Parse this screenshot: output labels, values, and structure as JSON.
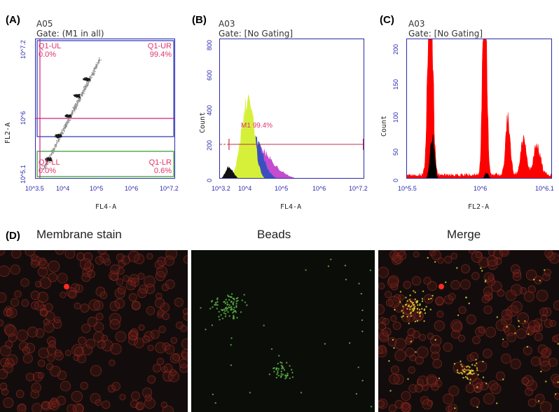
{
  "chart_data": [
    {
      "type": "scatter",
      "panel": "(A)",
      "well": "A05",
      "gate": "Gate: (M1 in all)",
      "xlabel": "FL4-A",
      "ylabel": "FL2-A",
      "log_scale": true,
      "x_ticks": [
        "10^3.5",
        "10^4",
        "10^5",
        "10^6",
        "10^7.2"
      ],
      "y_ticks": [
        "10^5.1",
        "10^6",
        "10^7.2"
      ],
      "quadrants": [
        {
          "name": "Q1-UL",
          "value": "0.0%"
        },
        {
          "name": "Q1-UR",
          "value": "99.4%"
        },
        {
          "name": "Q1-LL",
          "value": "0.0%"
        },
        {
          "name": "Q1-LR",
          "value": "0.6%"
        }
      ],
      "populations": [
        {
          "x_log": 3.85,
          "y_log": 5.4
        },
        {
          "x_log": 4.1,
          "y_log": 5.75
        },
        {
          "x_log": 4.35,
          "y_log": 6.05
        },
        {
          "x_log": 4.6,
          "y_log": 6.35
        },
        {
          "x_log": 4.85,
          "y_log": 6.6
        }
      ]
    },
    {
      "type": "area",
      "panel": "(B)",
      "well": "A03",
      "gate": "Gate: [No Gating]",
      "xlabel": "FL4-A",
      "ylabel": "Count",
      "x_ticks": [
        "10^3.2",
        "10^4",
        "10^5",
        "10^6",
        "10^7.2"
      ],
      "y_ticks": [
        "0",
        "200",
        "400",
        "600",
        "800"
      ],
      "ylim": [
        0,
        800
      ],
      "marker": {
        "name": "M1",
        "value": "99.4%",
        "x_range_log": [
          3.45,
          7.2
        ]
      },
      "peak_count": 470,
      "overlay_colors": [
        "#d6f03a",
        "#3b4fc0",
        "#c54bd1",
        "#111111"
      ]
    },
    {
      "type": "area",
      "panel": "(C)",
      "well": "A03",
      "gate": "Gate: [No Gating]",
      "xlabel": "FL2-A",
      "ylabel": "Count",
      "x_ticks": [
        "10^5.5",
        "10^6",
        "10^6.1"
      ],
      "y_ticks": [
        "0",
        "50",
        "100",
        "150",
        "200"
      ],
      "ylim": [
        0,
        200
      ],
      "peaks": [
        {
          "x_log": 5.62,
          "count": 200
        },
        {
          "x_log": 5.9,
          "count": 200
        },
        {
          "x_log": 6.02,
          "count": 80
        },
        {
          "x_log": 6.1,
          "count": 55
        },
        {
          "x_log": 6.17,
          "count": 40
        }
      ],
      "colors": [
        "#ff0000",
        "#000000"
      ]
    }
  ],
  "panel_d": {
    "letter": "(D)",
    "titles": [
      "Membrane stain",
      "Beads",
      "Merge"
    ]
  }
}
